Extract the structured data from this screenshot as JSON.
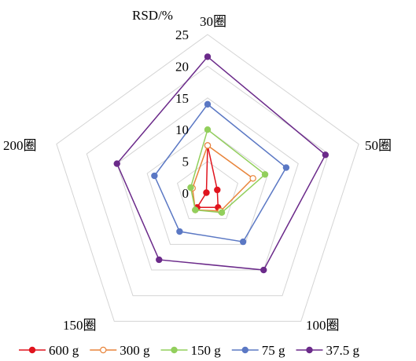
{
  "chart_data": {
    "type": "radar",
    "title": "",
    "axis_title": "RSD/%",
    "categories": [
      "30圈",
      "50圈",
      "100圈",
      "150圈",
      "200圈"
    ],
    "rlim": [
      0,
      25
    ],
    "ticks": [
      0,
      5,
      10,
      15,
      20,
      25
    ],
    "tick_labels": [
      "0",
      "5",
      "10",
      "15",
      "20",
      "25"
    ],
    "grid": true,
    "legend_position": "bottom",
    "series": [
      {
        "name": "600 g",
        "color": "#e0141e",
        "marker": "filled",
        "values": [
          7.5,
          1.6,
          2.8,
          2.8,
          0.2
        ]
      },
      {
        "name": "300 g",
        "color": "#e8843a",
        "marker": "hollow",
        "values": [
          7.5,
          7.5,
          3.5,
          3.3,
          2.5
        ]
      },
      {
        "name": "150 g",
        "color": "#92cf5c",
        "marker": "filled",
        "values": [
          10.0,
          9.5,
          3.8,
          3.3,
          2.8
        ]
      },
      {
        "name": "75 g",
        "color": "#5b78c4",
        "marker": "filled",
        "values": [
          14.0,
          13.0,
          9.5,
          7.5,
          8.8
        ]
      },
      {
        "name": "37.5 g",
        "color": "#6b2a8a",
        "marker": "filled",
        "values": [
          21.5,
          19.5,
          15.0,
          13.0,
          15.0
        ]
      }
    ]
  }
}
